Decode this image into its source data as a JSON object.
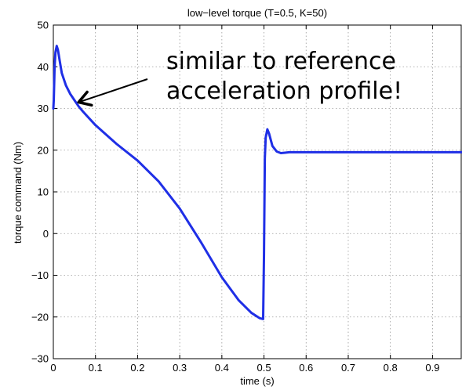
{
  "chart_data": {
    "type": "line",
    "title": "low−level torque (T=0.5, K=50)",
    "xlabel": "time (s)",
    "ylabel": "torque command (Nm)",
    "xlim": [
      0,
      0.97
    ],
    "ylim": [
      -30,
      50
    ],
    "xticks": [
      0,
      0.1,
      0.2,
      0.3,
      0.4,
      0.5,
      0.6,
      0.7,
      0.8,
      0.9
    ],
    "xtick_labels": [
      "0",
      "0.1",
      "0.2",
      "0.3",
      "0.4",
      "0.5",
      "0.6",
      "0.7",
      "0.8",
      "0.9"
    ],
    "yticks": [
      -30,
      -20,
      -10,
      0,
      10,
      20,
      30,
      40,
      50
    ],
    "ytick_labels": [
      "−30",
      "−20",
      "−10",
      "0",
      "10",
      "20",
      "30",
      "40",
      "50"
    ],
    "grid": true,
    "line_color": "#1f2fe6",
    "series": [
      {
        "x": [
          0,
          0.001,
          0.003,
          0.005,
          0.008,
          0.011,
          0.015,
          0.02,
          0.03,
          0.04,
          0.05,
          0.06,
          0.07,
          0.08,
          0.1,
          0.12,
          0.15,
          0.2,
          0.25,
          0.3,
          0.35,
          0.4,
          0.44,
          0.47,
          0.49,
          0.498,
          0.5,
          0.502,
          0.504,
          0.508,
          0.512,
          0.52,
          0.53,
          0.54,
          0.55,
          0.56,
          0.6,
          0.7,
          0.8,
          0.9,
          0.97
        ],
        "y": [
          30,
          32,
          40,
          43.5,
          45,
          44,
          41.5,
          38.5,
          35.5,
          33.5,
          32,
          30.5,
          29.3,
          28.2,
          26,
          24.2,
          21.5,
          17.5,
          12.5,
          6,
          -2,
          -10.5,
          -16,
          -19,
          -20.3,
          -20.5,
          -5,
          18,
          23,
          25,
          24,
          21,
          19.7,
          19.3,
          19.4,
          19.5,
          19.5,
          19.5,
          19.5,
          19.5,
          19.5
        ]
      }
    ],
    "annotation": {
      "text_lines": [
        "similar to reference",
        "acceleration profile!"
      ],
      "arrow_target": [
        0.06,
        31.5
      ]
    }
  }
}
